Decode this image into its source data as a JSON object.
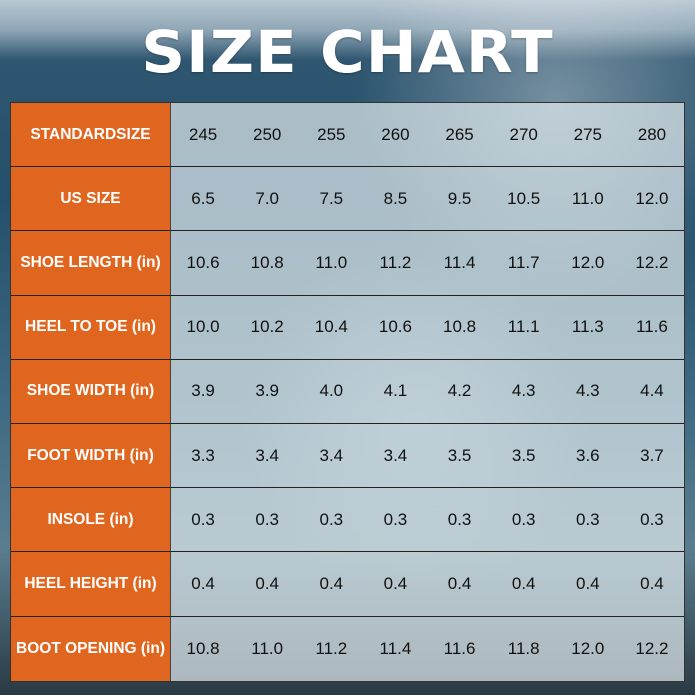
{
  "title": "SIZE CHART",
  "rows": [
    {
      "label": "STANDARDSIZE",
      "values": [
        "245",
        "250",
        "255",
        "260",
        "265",
        "270",
        "275",
        "280"
      ]
    },
    {
      "label": "US SIZE",
      "values": [
        "6.5",
        "7.0",
        "7.5",
        "8.5",
        "9.5",
        "10.5",
        "11.0",
        "12.0"
      ]
    },
    {
      "label": "SHOE LENGTH (in)",
      "values": [
        "10.6",
        "10.8",
        "11.0",
        "11.2",
        "11.4",
        "11.7",
        "12.0",
        "12.2"
      ]
    },
    {
      "label": "HEEL TO TOE (in)",
      "values": [
        "10.0",
        "10.2",
        "10.4",
        "10.6",
        "10.8",
        "11.1",
        "11.3",
        "11.6"
      ]
    },
    {
      "label": "SHOE WIDTH (in)",
      "values": [
        "3.9",
        "3.9",
        "4.0",
        "4.1",
        "4.2",
        "4.3",
        "4.3",
        "4.4"
      ]
    },
    {
      "label": "FOOT WIDTH (in)",
      "values": [
        "3.3",
        "3.4",
        "3.4",
        "3.4",
        "3.5",
        "3.5",
        "3.6",
        "3.7"
      ]
    },
    {
      "label": "INSOLE (in)",
      "values": [
        "0.3",
        "0.3",
        "0.3",
        "0.3",
        "0.3",
        "0.3",
        "0.3",
        "0.3"
      ]
    },
    {
      "label": "HEEL HEIGHT (in)",
      "values": [
        "0.4",
        "0.4",
        "0.4",
        "0.4",
        "0.4",
        "0.4",
        "0.4",
        "0.4"
      ]
    },
    {
      "label": "BOOT OPENING (in)",
      "values": [
        "10.8",
        "11.0",
        "11.2",
        "11.4",
        "11.6",
        "11.8",
        "12.0",
        "12.2"
      ]
    }
  ],
  "colors": {
    "label_bg": "#e0661f",
    "label_text": "#ffffff",
    "title": "#ffffff"
  }
}
